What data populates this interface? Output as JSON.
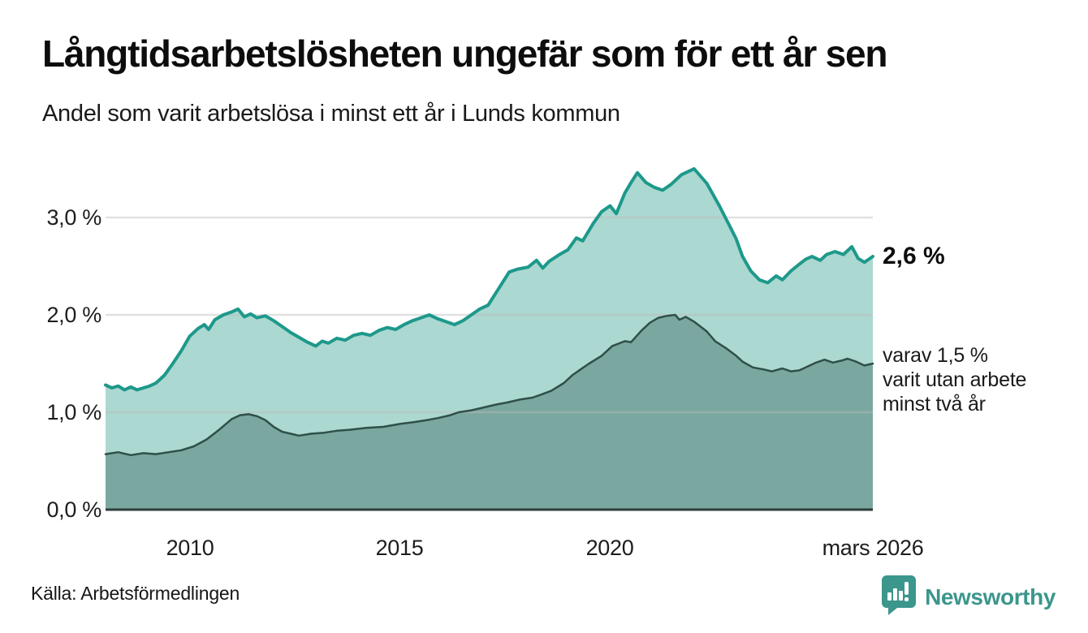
{
  "header": {
    "title": "Långtidsarbetslösheten ungefär som för ett år sen",
    "subtitle": "Andel som varit arbetslösa i minst ett år i Lunds kommun"
  },
  "chart_data": {
    "type": "area",
    "title": "Långtidsarbetslösheten ungefär som för ett år sen",
    "subtitle": "Andel som varit arbetslösa i minst ett år i Lunds kommun",
    "unit": "%",
    "x_range": [
      2008,
      2026.25
    ],
    "y_range": [
      0,
      3.6
    ],
    "grid": true,
    "x_ticks": [
      {
        "x": 2010,
        "label": "2010"
      },
      {
        "x": 2015,
        "label": "2015"
      },
      {
        "x": 2020,
        "label": "2020"
      },
      {
        "x": 2026.25,
        "label": "mars 2026"
      }
    ],
    "y_ticks": [
      {
        "y": 0,
        "label": "0,0 %"
      },
      {
        "y": 1,
        "label": "1,0 %"
      },
      {
        "y": 2,
        "label": "2,0 %"
      },
      {
        "y": 3,
        "label": "3,0 %"
      }
    ],
    "colors": {
      "long_term_line": "#1d998b",
      "long_term_fill": "#abd8d0",
      "very_long_term_line": "#2f4f4a",
      "very_long_term_fill": "#7aa8a1",
      "gridline": "#bdbdbd",
      "axis": "#2e3d3b",
      "brand_teal": "#3b968c"
    },
    "series": [
      {
        "name": "Arbetslösa minst ett år",
        "end_value_pct": 2.6,
        "color": "#1d998b",
        "fill": "#abd8d0",
        "points": [
          [
            2008.0,
            1.28
          ],
          [
            2008.15,
            1.25
          ],
          [
            2008.3,
            1.27
          ],
          [
            2008.45,
            1.23
          ],
          [
            2008.6,
            1.26
          ],
          [
            2008.75,
            1.23
          ],
          [
            2008.9,
            1.25
          ],
          [
            2009.05,
            1.27
          ],
          [
            2009.2,
            1.3
          ],
          [
            2009.4,
            1.38
          ],
          [
            2009.6,
            1.5
          ],
          [
            2009.8,
            1.63
          ],
          [
            2010.0,
            1.78
          ],
          [
            2010.2,
            1.86
          ],
          [
            2010.35,
            1.9
          ],
          [
            2010.45,
            1.85
          ],
          [
            2010.6,
            1.95
          ],
          [
            2010.8,
            2.0
          ],
          [
            2011.0,
            2.03
          ],
          [
            2011.15,
            2.06
          ],
          [
            2011.3,
            1.98
          ],
          [
            2011.45,
            2.01
          ],
          [
            2011.6,
            1.97
          ],
          [
            2011.8,
            1.99
          ],
          [
            2012.0,
            1.94
          ],
          [
            2012.2,
            1.88
          ],
          [
            2012.4,
            1.82
          ],
          [
            2012.6,
            1.77
          ],
          [
            2012.8,
            1.72
          ],
          [
            2013.0,
            1.68
          ],
          [
            2013.15,
            1.73
          ],
          [
            2013.3,
            1.71
          ],
          [
            2013.5,
            1.76
          ],
          [
            2013.7,
            1.74
          ],
          [
            2013.9,
            1.79
          ],
          [
            2014.1,
            1.81
          ],
          [
            2014.3,
            1.79
          ],
          [
            2014.5,
            1.84
          ],
          [
            2014.7,
            1.87
          ],
          [
            2014.9,
            1.85
          ],
          [
            2015.1,
            1.9
          ],
          [
            2015.3,
            1.94
          ],
          [
            2015.5,
            1.97
          ],
          [
            2015.7,
            2.0
          ],
          [
            2015.9,
            1.96
          ],
          [
            2016.1,
            1.93
          ],
          [
            2016.3,
            1.9
          ],
          [
            2016.5,
            1.94
          ],
          [
            2016.7,
            2.0
          ],
          [
            2016.9,
            2.06
          ],
          [
            2017.1,
            2.1
          ],
          [
            2017.35,
            2.27
          ],
          [
            2017.6,
            2.44
          ],
          [
            2017.8,
            2.47
          ],
          [
            2018.05,
            2.49
          ],
          [
            2018.25,
            2.56
          ],
          [
            2018.4,
            2.48
          ],
          [
            2018.55,
            2.55
          ],
          [
            2018.8,
            2.62
          ],
          [
            2019.0,
            2.67
          ],
          [
            2019.2,
            2.79
          ],
          [
            2019.35,
            2.76
          ],
          [
            2019.6,
            2.94
          ],
          [
            2019.8,
            3.06
          ],
          [
            2020.0,
            3.12
          ],
          [
            2020.15,
            3.04
          ],
          [
            2020.35,
            3.25
          ],
          [
            2020.5,
            3.36
          ],
          [
            2020.65,
            3.46
          ],
          [
            2020.85,
            3.36
          ],
          [
            2021.05,
            3.31
          ],
          [
            2021.25,
            3.28
          ],
          [
            2021.45,
            3.34
          ],
          [
            2021.7,
            3.44
          ],
          [
            2022.0,
            3.5
          ],
          [
            2022.3,
            3.35
          ],
          [
            2022.6,
            3.12
          ],
          [
            2022.8,
            2.95
          ],
          [
            2023.0,
            2.78
          ],
          [
            2023.15,
            2.6
          ],
          [
            2023.35,
            2.45
          ],
          [
            2023.55,
            2.36
          ],
          [
            2023.75,
            2.33
          ],
          [
            2023.95,
            2.4
          ],
          [
            2024.1,
            2.36
          ],
          [
            2024.3,
            2.45
          ],
          [
            2024.5,
            2.52
          ],
          [
            2024.65,
            2.57
          ],
          [
            2024.8,
            2.6
          ],
          [
            2025.0,
            2.56
          ],
          [
            2025.15,
            2.62
          ],
          [
            2025.35,
            2.65
          ],
          [
            2025.55,
            2.62
          ],
          [
            2025.75,
            2.7
          ],
          [
            2025.9,
            2.58
          ],
          [
            2026.05,
            2.54
          ],
          [
            2026.25,
            2.6
          ]
        ]
      },
      {
        "name": "Varit utan arbete minst två år",
        "end_value_pct": 1.5,
        "color": "#2f4f4a",
        "fill": "#7aa8a1",
        "points": [
          [
            2008.0,
            0.57
          ],
          [
            2008.3,
            0.59
          ],
          [
            2008.6,
            0.56
          ],
          [
            2008.9,
            0.58
          ],
          [
            2009.2,
            0.57
          ],
          [
            2009.5,
            0.59
          ],
          [
            2009.8,
            0.61
          ],
          [
            2010.1,
            0.65
          ],
          [
            2010.4,
            0.72
          ],
          [
            2010.7,
            0.82
          ],
          [
            2011.0,
            0.93
          ],
          [
            2011.2,
            0.97
          ],
          [
            2011.4,
            0.98
          ],
          [
            2011.6,
            0.96
          ],
          [
            2011.8,
            0.92
          ],
          [
            2012.0,
            0.85
          ],
          [
            2012.2,
            0.8
          ],
          [
            2012.4,
            0.78
          ],
          [
            2012.6,
            0.76
          ],
          [
            2012.9,
            0.78
          ],
          [
            2013.2,
            0.79
          ],
          [
            2013.5,
            0.81
          ],
          [
            2013.8,
            0.82
          ],
          [
            2014.2,
            0.84
          ],
          [
            2014.6,
            0.85
          ],
          [
            2015.0,
            0.88
          ],
          [
            2015.35,
            0.9
          ],
          [
            2015.65,
            0.92
          ],
          [
            2015.9,
            0.94
          ],
          [
            2016.2,
            0.97
          ],
          [
            2016.4,
            1.0
          ],
          [
            2016.7,
            1.02
          ],
          [
            2017.0,
            1.05
          ],
          [
            2017.3,
            1.08
          ],
          [
            2017.55,
            1.1
          ],
          [
            2017.85,
            1.13
          ],
          [
            2018.15,
            1.15
          ],
          [
            2018.35,
            1.18
          ],
          [
            2018.6,
            1.22
          ],
          [
            2018.9,
            1.3
          ],
          [
            2019.1,
            1.38
          ],
          [
            2019.3,
            1.44
          ],
          [
            2019.5,
            1.5
          ],
          [
            2019.8,
            1.58
          ],
          [
            2020.05,
            1.68
          ],
          [
            2020.35,
            1.73
          ],
          [
            2020.5,
            1.72
          ],
          [
            2020.75,
            1.84
          ],
          [
            2020.95,
            1.92
          ],
          [
            2021.15,
            1.97
          ],
          [
            2021.35,
            1.99
          ],
          [
            2021.55,
            2.0
          ],
          [
            2021.65,
            1.95
          ],
          [
            2021.8,
            1.98
          ],
          [
            2022.0,
            1.93
          ],
          [
            2022.3,
            1.83
          ],
          [
            2022.5,
            1.73
          ],
          [
            2022.75,
            1.66
          ],
          [
            2023.0,
            1.58
          ],
          [
            2023.15,
            1.52
          ],
          [
            2023.4,
            1.46
          ],
          [
            2023.65,
            1.44
          ],
          [
            2023.85,
            1.42
          ],
          [
            2024.1,
            1.45
          ],
          [
            2024.3,
            1.42
          ],
          [
            2024.5,
            1.43
          ],
          [
            2024.7,
            1.47
          ],
          [
            2024.9,
            1.51
          ],
          [
            2025.1,
            1.54
          ],
          [
            2025.3,
            1.51
          ],
          [
            2025.5,
            1.53
          ],
          [
            2025.65,
            1.55
          ],
          [
            2025.85,
            1.52
          ],
          [
            2026.05,
            1.48
          ],
          [
            2026.25,
            1.5
          ]
        ]
      }
    ]
  },
  "annotations": {
    "end_value": "2,6 %",
    "end_note": "varav 1,5 %\nvarit utan arbete\nminst två år"
  },
  "footer": {
    "source": "Källa: Arbetsförmedlingen",
    "brand": "Newsworthy"
  }
}
